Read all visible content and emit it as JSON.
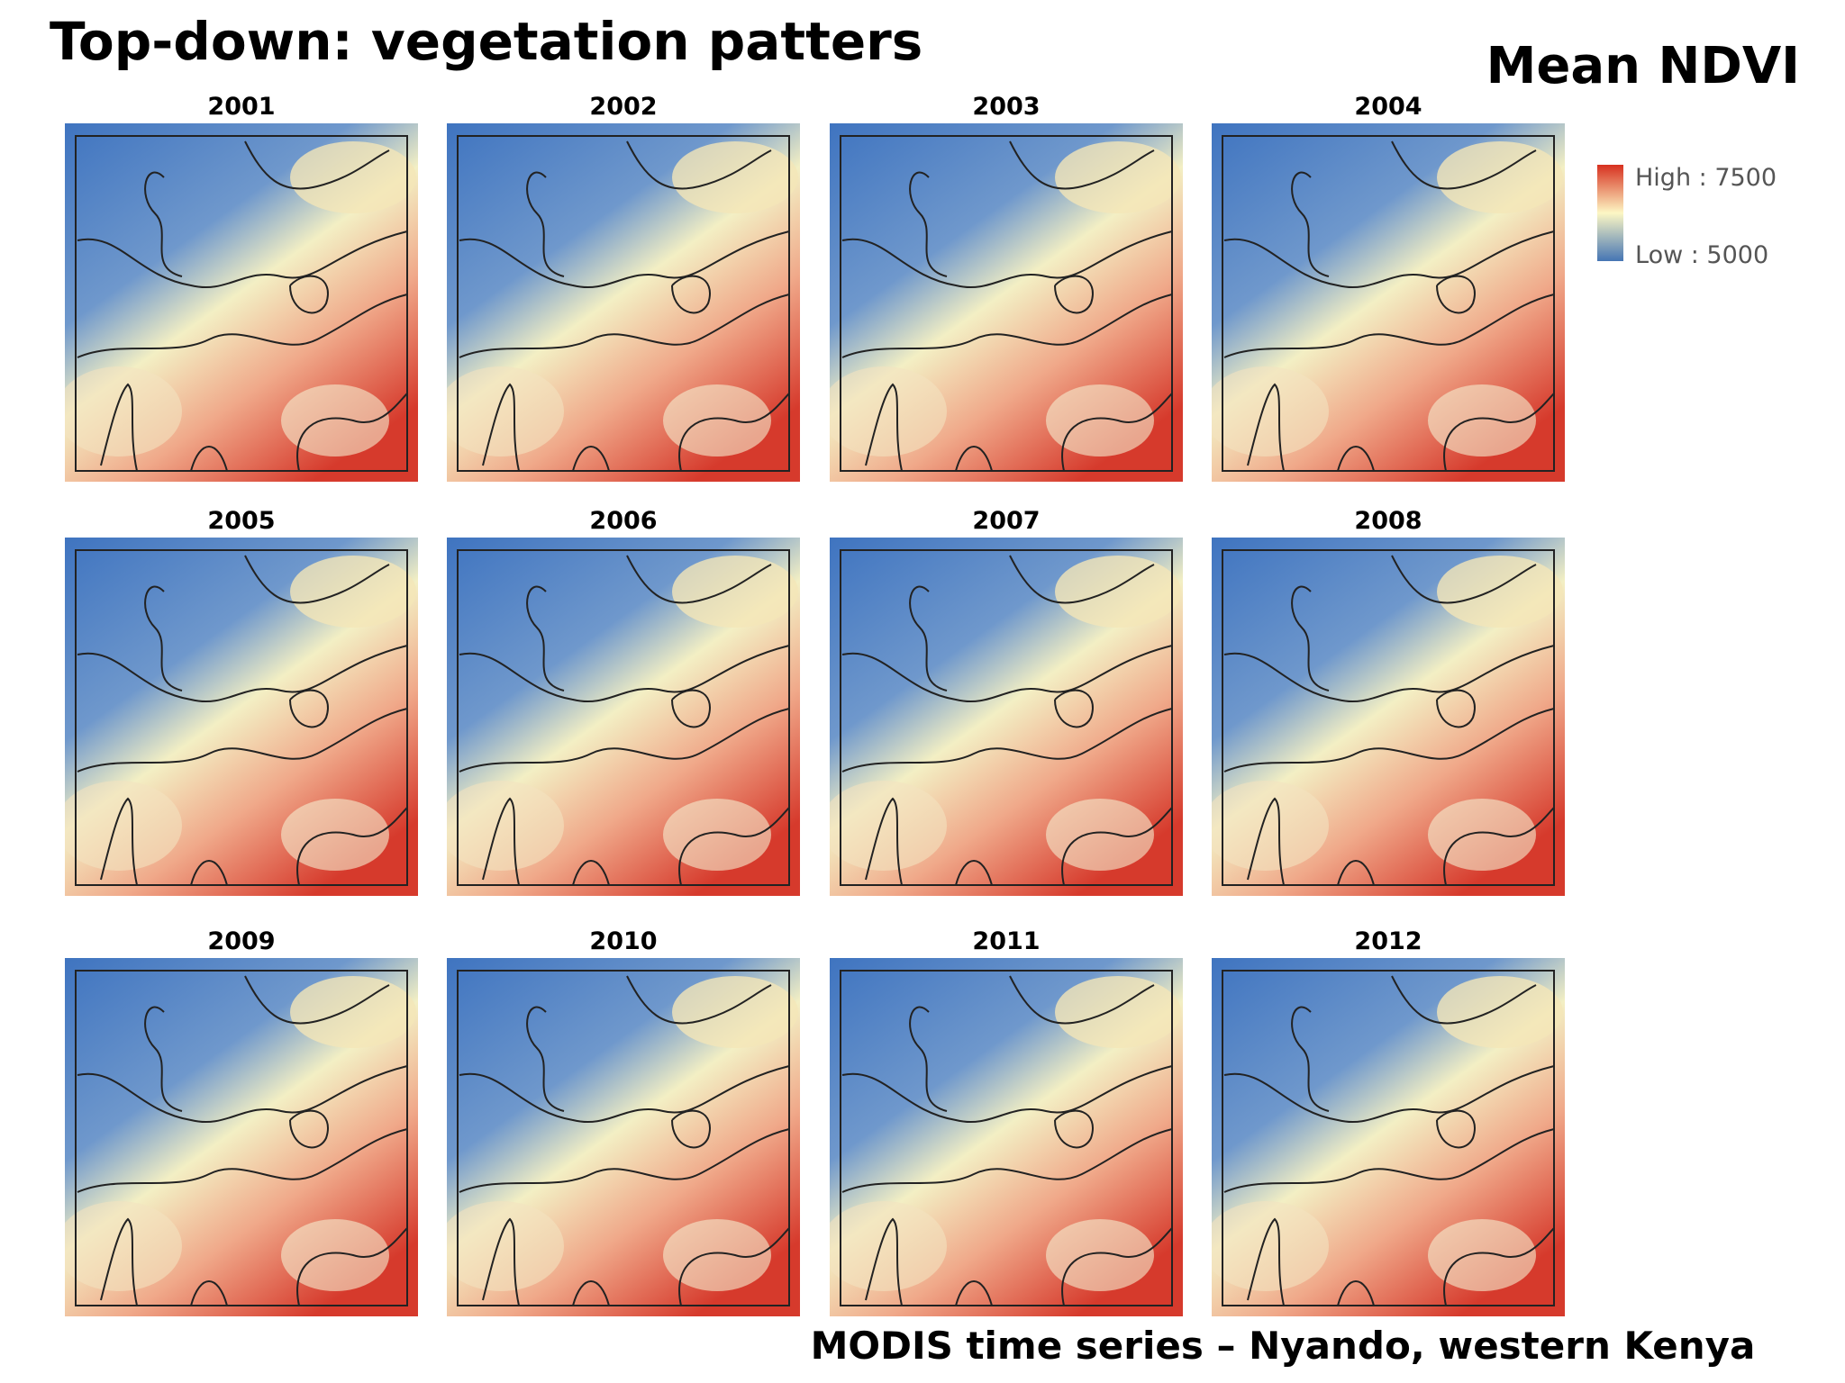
{
  "title": "Top-down: vegetation patters",
  "subtitle": "Mean NDVI",
  "legend": {
    "high": "High : 7500",
    "low": "Low : 5000"
  },
  "panels": [
    {
      "label": "2001"
    },
    {
      "label": "2002"
    },
    {
      "label": "2003"
    },
    {
      "label": "2004"
    },
    {
      "label": "2005"
    },
    {
      "label": "2006"
    },
    {
      "label": "2007"
    },
    {
      "label": "2008"
    },
    {
      "label": "2009"
    },
    {
      "label": "2010"
    },
    {
      "label": "2011"
    },
    {
      "label": "2012"
    }
  ],
  "caption": "MODIS time series – Nyando, western Kenya"
}
